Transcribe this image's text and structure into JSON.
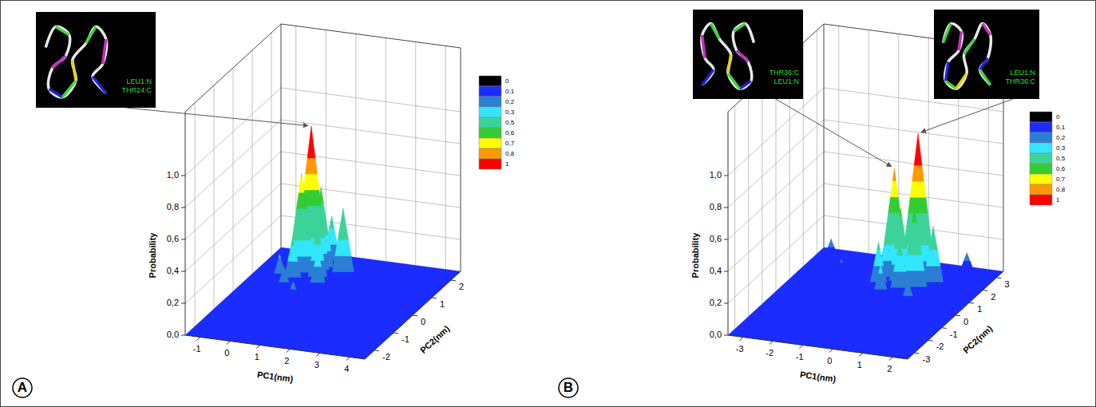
{
  "chart_data": [
    {
      "type": "surface",
      "title": "A",
      "xlabel": "PC1(nm)",
      "ylabel": "PC2(nm)",
      "zlabel": "Probability",
      "xlim": [
        -1.5,
        4.5
      ],
      "xticks": [
        -1,
        0,
        1,
        2,
        3,
        4
      ],
      "ylim": [
        -2.5,
        2.5
      ],
      "yticks": [
        -2,
        -1,
        0,
        1,
        2
      ],
      "zlim": [
        0,
        1.4
      ],
      "zticks": [
        {
          "value": 0,
          "label": "0,0"
        },
        {
          "value": 0.2,
          "label": "0,2"
        },
        {
          "value": 0.4,
          "label": "0,4"
        },
        {
          "value": 0.6,
          "label": "0,6"
        },
        {
          "value": 0.8,
          "label": "0,8"
        },
        {
          "value": 1,
          "label": "1,0"
        }
      ],
      "grid": true,
      "x": [
        0.6,
        0.4,
        0.8,
        0.3,
        1.0,
        1.6,
        0.2,
        0.7,
        1.2,
        -0.2,
        0.9,
        0.0
      ],
      "y": [
        0.8,
        0.6,
        1.0,
        0.3,
        0.5,
        0.9,
        0.0,
        -0.3,
        0.2,
        0.4,
        1.4,
        0.9
      ],
      "values": [
        1.0,
        0.72,
        0.6,
        0.35,
        0.42,
        0.5,
        0.2,
        0.15,
        0.3,
        0.22,
        0.38,
        0.18
      ],
      "colorbar": {
        "ticks": [
          0,
          {
            "value": 0.1,
            "label": "0,1"
          },
          {
            "value": 0.2,
            "label": "0,2"
          },
          {
            "value": 0.3,
            "label": "0,3"
          },
          {
            "value": 0.5,
            "label": "0,5"
          },
          {
            "value": 0.6,
            "label": "0,6"
          },
          {
            "value": 0.7,
            "label": "0,7"
          },
          {
            "value": 0.8,
            "label": "0,8"
          },
          1
        ],
        "colors": [
          "#000000",
          "#1a2cff",
          "#2a7fd4",
          "#33e6ff",
          "#3cd39a",
          "#33cc33",
          "#ffff00",
          "#ff9900",
          "#ff0000"
        ]
      },
      "annotations": [
        {
          "labels": [
            "LEU1:N",
            "THR24:C"
          ],
          "x": 0.6,
          "y": 0.8,
          "value": 1.0
        }
      ]
    },
    {
      "type": "surface",
      "title": "B",
      "xlabel": "PC1(nm)",
      "ylabel": "PC2(nm)",
      "zlabel": "Probability",
      "xlim": [
        -3.5,
        2.5
      ],
      "xticks": [
        -3,
        -2,
        -1,
        0,
        1,
        2
      ],
      "ylim": [
        -3.5,
        3.5
      ],
      "yticks": [
        -3,
        -2,
        -1,
        0,
        1,
        2,
        3
      ],
      "zlim": [
        0,
        1.4
      ],
      "zticks": [
        {
          "value": 0,
          "label": "0,0"
        },
        {
          "value": 0.2,
          "label": "0,2"
        },
        {
          "value": 0.4,
          "label": "0,4"
        },
        {
          "value": 0.6,
          "label": "0,6"
        },
        {
          "value": 0.8,
          "label": "0,8"
        },
        {
          "value": 1,
          "label": "1,0"
        }
      ],
      "grid": true,
      "x": [
        0.7,
        0.0,
        0.3,
        0.9,
        0.5,
        -0.3,
        1.3,
        -2.8,
        -2.0,
        1.6,
        1.0,
        0.0,
        -0.6
      ],
      "y": [
        1.2,
        1.0,
        0.8,
        0.5,
        0.3,
        0.5,
        1.0,
        2.5,
        1.5,
        2.8,
        -0.2,
        0.0,
        1.8
      ],
      "values": [
        1.0,
        0.78,
        0.55,
        0.6,
        0.4,
        0.35,
        0.45,
        0.15,
        0.12,
        0.15,
        0.2,
        0.25,
        0.3
      ],
      "colorbar": {
        "ticks": [
          0,
          {
            "value": 0.1,
            "label": "0,1"
          },
          {
            "value": 0.2,
            "label": "0,2"
          },
          {
            "value": 0.3,
            "label": "0,3"
          },
          {
            "value": 0.5,
            "label": "0,5"
          },
          {
            "value": 0.6,
            "label": "0,6"
          },
          {
            "value": 0.7,
            "label": "0,7"
          },
          {
            "value": 0.8,
            "label": "0,8"
          },
          1
        ],
        "colors": [
          "#000000",
          "#1a2cff",
          "#2a7fd4",
          "#33e6ff",
          "#3cd39a",
          "#33cc33",
          "#ffff00",
          "#ff9900",
          "#ff0000"
        ]
      },
      "annotations": [
        {
          "labels": [
            "THR36:C",
            "LEU1:N"
          ],
          "x": 0.0,
          "y": 1.0,
          "value": 0.78
        },
        {
          "labels": [
            "LEU1:N",
            "THR36:C"
          ],
          "x": 0.7,
          "y": 1.2,
          "value": 1.0
        }
      ]
    }
  ]
}
